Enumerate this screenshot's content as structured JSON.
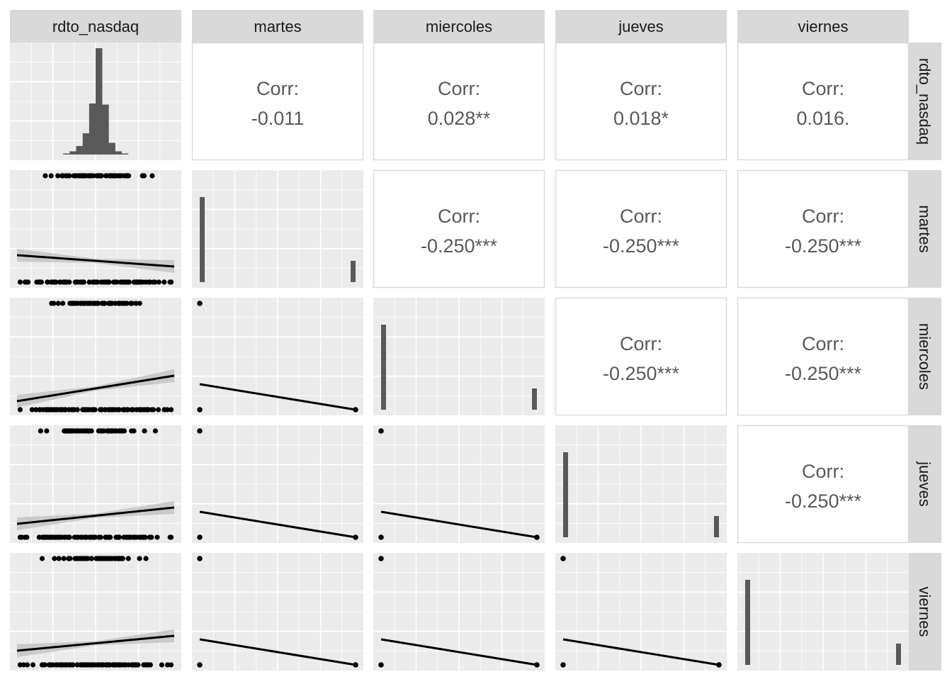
{
  "variables": [
    "rdto_nasdaq",
    "martes",
    "miercoles",
    "jueves",
    "viernes"
  ],
  "chart_data": {
    "type": "scatter",
    "layout": "pairs-matrix",
    "columns": [
      "rdto_nasdaq",
      "martes",
      "miercoles",
      "jueves",
      "viernes"
    ],
    "rows": [
      "rdto_nasdaq",
      "martes",
      "miercoles",
      "jueves",
      "viernes"
    ],
    "upper_label": "Corr:",
    "correlations": [
      {
        "row": "rdto_nasdaq",
        "col": "martes",
        "value": "-0.011"
      },
      {
        "row": "rdto_nasdaq",
        "col": "miercoles",
        "value": "0.028**"
      },
      {
        "row": "rdto_nasdaq",
        "col": "jueves",
        "value": "0.018*"
      },
      {
        "row": "rdto_nasdaq",
        "col": "viernes",
        "value": "0.016."
      },
      {
        "row": "martes",
        "col": "miercoles",
        "value": "-0.250***"
      },
      {
        "row": "martes",
        "col": "jueves",
        "value": "-0.250***"
      },
      {
        "row": "martes",
        "col": "viernes",
        "value": "-0.250***"
      },
      {
        "row": "miercoles",
        "col": "jueves",
        "value": "-0.250***"
      },
      {
        "row": "miercoles",
        "col": "viernes",
        "value": "-0.250***"
      },
      {
        "row": "jueves",
        "col": "viernes",
        "value": "-0.250***"
      }
    ],
    "histogram_rdto_nasdaq": [
      0,
      0,
      0,
      0,
      0,
      0,
      0,
      1,
      3,
      8,
      20,
      48,
      100,
      47,
      11,
      3,
      1,
      0,
      0,
      0,
      0,
      0,
      0,
      0
    ],
    "dummy_bar_heights": [
      0.8,
      0.2
    ],
    "grid": true,
    "axis_labels_shown": false,
    "colors": {
      "panel_bg": "#ebebeb",
      "grid": "#ffffff",
      "strip_bg": "#d9d9d9",
      "strip_text": "#1a1a1a",
      "bar": "#595959",
      "point": "#000000",
      "line": "#000000",
      "ribbon": "#c4c4c4",
      "corr_text": "#595959",
      "corr_border": "#d9d9d9"
    }
  }
}
